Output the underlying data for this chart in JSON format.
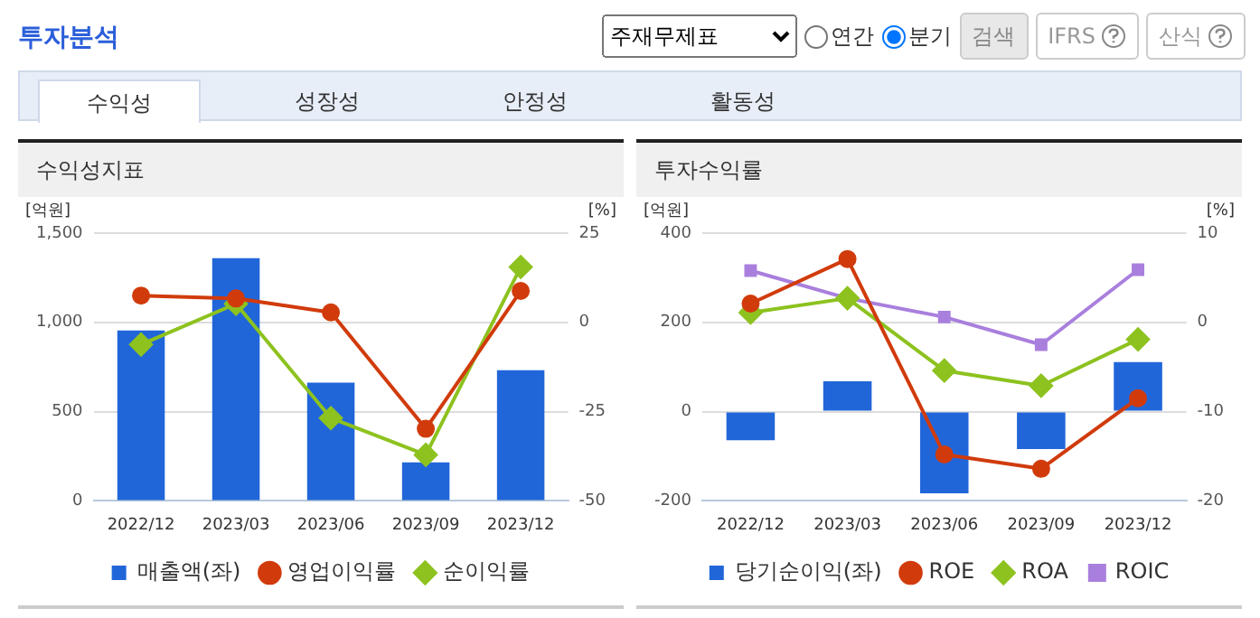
{
  "chart_data": [
    {
      "type": "other",
      "title": "투자분석",
      "annotations": [
        "주재무제표",
        "연간",
        "분기",
        "검색",
        "IFRS",
        "산식",
        "수익성",
        "성장성",
        "안정성",
        "활동성"
      ]
    },
    {
      "type": "bar",
      "title": "수익성지표",
      "ylabel": "[억원]",
      "y2label": "[%]",
      "categories": [
        "2022/12",
        "2023/03",
        "2023/06",
        "2023/09",
        "2023/12"
      ],
      "ylim": [
        0,
        1500
      ],
      "yticks": [
        0,
        500,
        {
          "value": 1000,
          "label": "1,000"
        },
        {
          "value": 1500,
          "label": "1,500"
        }
      ],
      "y2lim": [
        -50,
        25
      ],
      "y2ticks": [
        -50,
        -25,
        0,
        25
      ],
      "grid": "y",
      "legend": "bottom",
      "series": [
        {
          "name": "매출액(좌)",
          "type": "bar",
          "color": "#2166d9",
          "values": [
            955,
            1360,
            662,
            216,
            732
          ]
        },
        {
          "name": "영업이익률",
          "type": "line",
          "axis": "y2",
          "marker": "circle",
          "line_style": "solid",
          "color": "#d13b0c",
          "values": [
            7.5,
            6.7,
            2.8,
            -29.8,
            8.8
          ]
        },
        {
          "name": "순이익률",
          "type": "line",
          "axis": "y2",
          "marker": "diamond",
          "line_style": "solid",
          "color": "#8dc21f",
          "values": [
            -6.2,
            5.2,
            -26.8,
            -37.1,
            15.5
          ]
        }
      ]
    },
    {
      "type": "bar",
      "title": "투자수익률",
      "ylabel": "[억원]",
      "y2label": "[%]",
      "categories": [
        "2022/12",
        "2023/03",
        "2023/06",
        "2023/09",
        "2023/12"
      ],
      "ylim": [
        -200,
        400
      ],
      "yticks": [
        -200,
        0,
        200,
        400
      ],
      "y2lim": [
        -20,
        10
      ],
      "y2ticks": [
        -20,
        -10,
        0,
        10
      ],
      "grid": "y",
      "legend": "bottom",
      "series": [
        {
          "name": "당기순이익(좌)",
          "type": "bar",
          "color": "#2166d9",
          "values": [
            -64,
            68,
            -183,
            -84,
            111
          ]
        },
        {
          "name": "ROE",
          "type": "line",
          "axis": "y2",
          "marker": "circle",
          "line_style": "solid",
          "color": "#d13b0c",
          "values": [
            2.1,
            7.1,
            -14.8,
            -16.4,
            -8.5
          ]
        },
        {
          "name": "ROA",
          "type": "line",
          "axis": "y2",
          "marker": "diamond",
          "line_style": "solid",
          "color": "#8dc21f",
          "values": [
            1.1,
            2.7,
            -5.4,
            -7.1,
            -1.9
          ]
        },
        {
          "name": "ROIC",
          "type": "line",
          "axis": "y2",
          "marker": "square",
          "line_style": "solid",
          "color": "#a97fdd",
          "values": [
            5.8,
            2.7,
            0.6,
            -2.5,
            5.9
          ]
        }
      ]
    }
  ]
}
